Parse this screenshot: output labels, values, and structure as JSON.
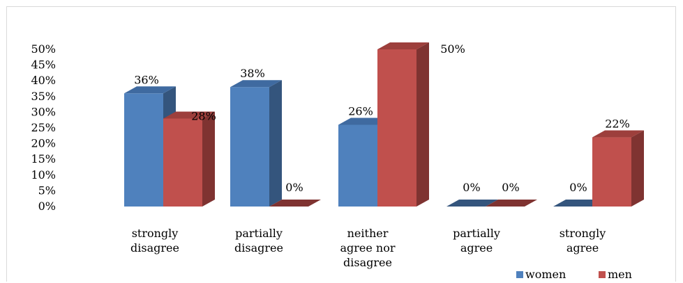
{
  "chart_data": {
    "type": "bar",
    "title": "",
    "xlabel": "",
    "ylabel": "",
    "ylim": [
      0,
      50
    ],
    "y_ticks": [
      "0%",
      "5%",
      "10%",
      "15%",
      "20%",
      "25%",
      "30%",
      "35%",
      "40%",
      "45%",
      "50%"
    ],
    "y_tick_values": [
      0,
      5,
      10,
      15,
      20,
      25,
      30,
      35,
      40,
      45,
      50
    ],
    "categories": [
      [
        "strongly",
        "disagree"
      ],
      [
        "partially",
        "disagree"
      ],
      [
        "neither",
        "agree nor",
        "disagree"
      ],
      [
        "partially",
        "agree"
      ],
      [
        "strongly",
        "agree"
      ]
    ],
    "series": [
      {
        "name": "women",
        "values": [
          36,
          38,
          26,
          0,
          0
        ],
        "labels": [
          "36%",
          "38%",
          "26%",
          "0%",
          "0%"
        ],
        "color": "#4f81bd",
        "side_color": "#34557d",
        "top_color": "#3f6aa0"
      },
      {
        "name": "men",
        "values": [
          28,
          0,
          50,
          0,
          22
        ],
        "labels": [
          "28%",
          "0%",
          "50%",
          "0%",
          "22%"
        ],
        "color": "#c0504d",
        "side_color": "#7f3331",
        "top_color": "#9d3f3c"
      }
    ],
    "grid": false,
    "legend_position": "bottom-right",
    "style": "3d-clustered-column"
  }
}
